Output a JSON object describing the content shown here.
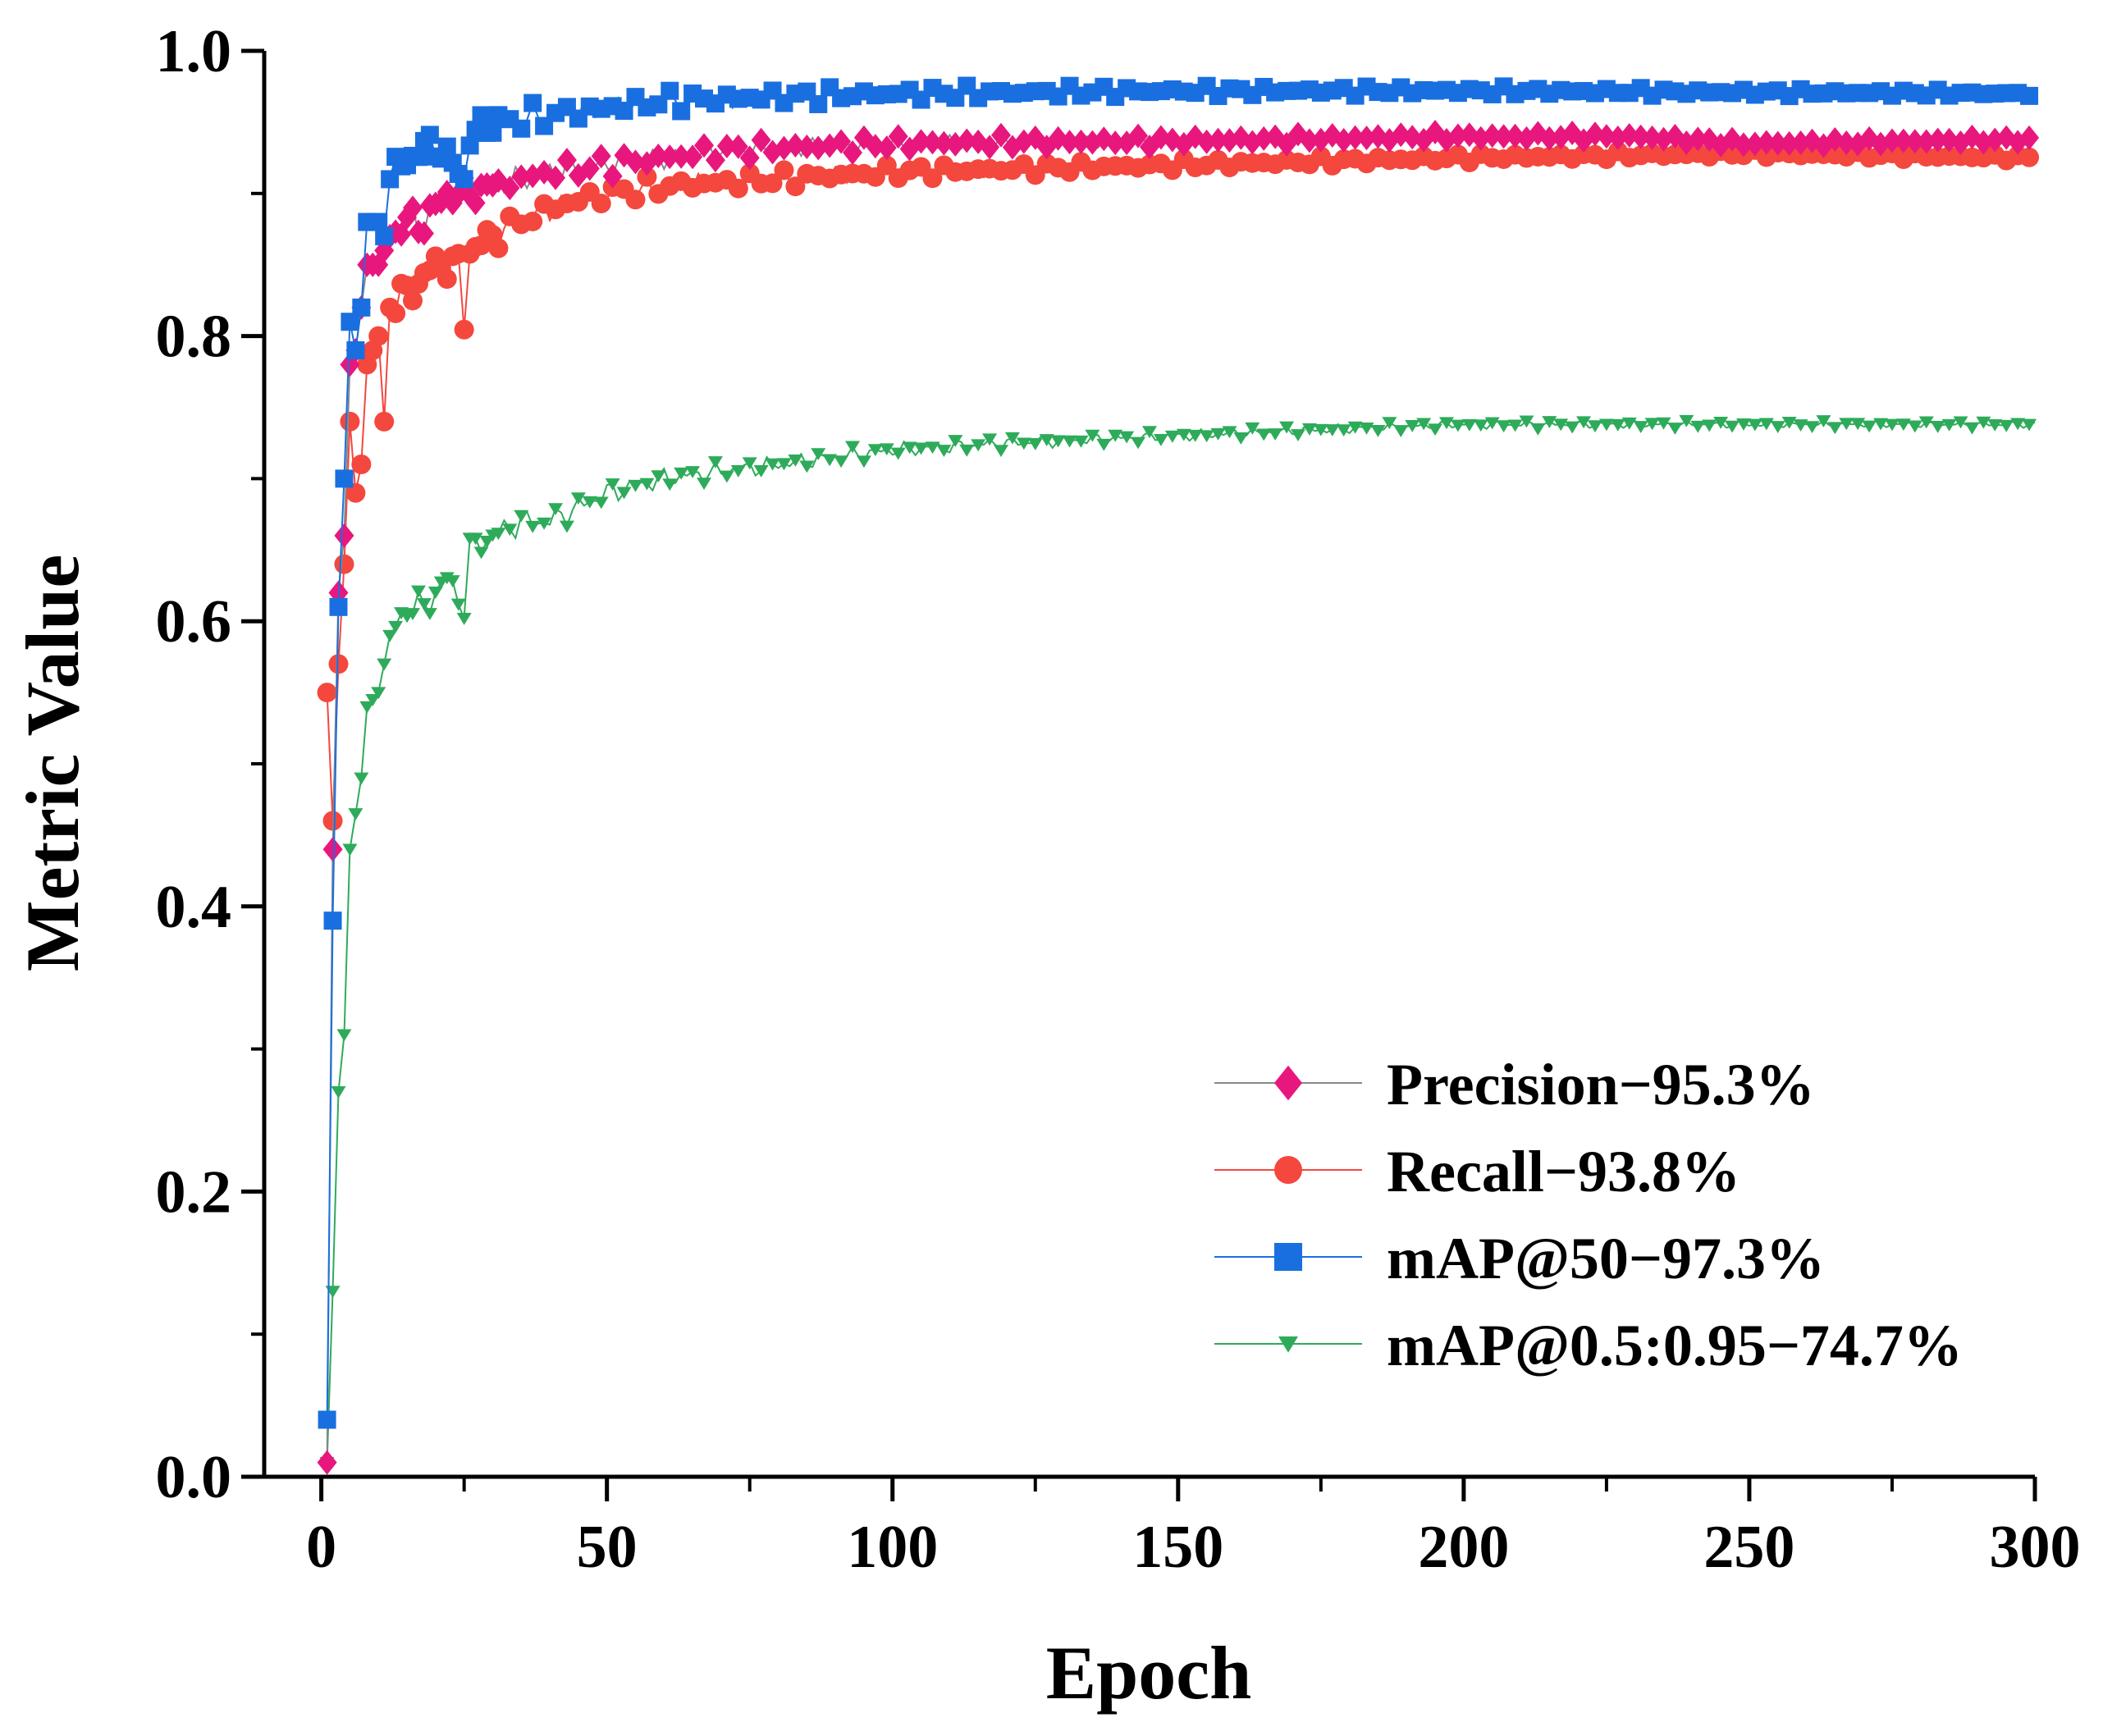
{
  "chart_data": {
    "type": "line",
    "title": "",
    "xlabel": "Epoch",
    "ylabel": "Metric Value",
    "xlim": [
      -10,
      300
    ],
    "ylim": [
      0.0,
      1.0
    ],
    "x_ticks": [
      0,
      50,
      100,
      150,
      200,
      250,
      300
    ],
    "x_tick_labels": [
      "0",
      "50",
      "100",
      "150",
      "200",
      "250",
      "300"
    ],
    "y_ticks": [
      0.0,
      0.2,
      0.4,
      0.6,
      0.8,
      1.0
    ],
    "y_tick_labels": [
      "0.0",
      "0.2",
      "0.4",
      "0.6",
      "0.8",
      "1.0"
    ],
    "grid": false,
    "legend_position": "bottom-right",
    "series": [
      {
        "name": "Precision",
        "legend_label": "Precision−95.3%",
        "color": "#e8177e",
        "line_color": "#888888",
        "marker": "diamond",
        "anchors": [
          [
            1,
            0.01
          ],
          [
            2,
            0.44
          ],
          [
            3,
            0.62
          ],
          [
            4,
            0.66
          ],
          [
            5,
            0.78
          ],
          [
            6,
            0.79
          ],
          [
            7,
            0.82
          ],
          [
            8,
            0.85
          ],
          [
            10,
            0.85
          ],
          [
            12,
            0.87
          ],
          [
            15,
            0.88
          ],
          [
            18,
            0.88
          ],
          [
            22,
            0.9
          ],
          [
            25,
            0.9
          ],
          [
            30,
            0.905
          ],
          [
            40,
            0.915
          ],
          [
            50,
            0.92
          ],
          [
            60,
            0.925
          ],
          [
            70,
            0.93
          ],
          [
            80,
            0.932
          ],
          [
            100,
            0.935
          ],
          [
            120,
            0.936
          ],
          [
            150,
            0.937
          ],
          [
            200,
            0.94
          ],
          [
            230,
            0.94
          ],
          [
            250,
            0.935
          ],
          [
            300,
            0.938
          ]
        ]
      },
      {
        "name": "Recall",
        "legend_label": "Recall−93.8%",
        "color": "#f4473e",
        "line_color": "#f4473e",
        "marker": "circle",
        "anchors": [
          [
            1,
            0.55
          ],
          [
            2,
            0.46
          ],
          [
            3,
            0.57
          ],
          [
            4,
            0.64
          ],
          [
            5,
            0.74
          ],
          [
            6,
            0.69
          ],
          [
            7,
            0.71
          ],
          [
            8,
            0.78
          ],
          [
            9,
            0.79
          ],
          [
            10,
            0.8
          ],
          [
            11,
            0.74
          ],
          [
            12,
            0.82
          ],
          [
            15,
            0.83
          ],
          [
            20,
            0.85
          ],
          [
            24,
            0.85
          ],
          [
            25,
            0.81
          ],
          [
            26,
            0.86
          ],
          [
            30,
            0.87
          ],
          [
            40,
            0.89
          ],
          [
            50,
            0.9
          ],
          [
            60,
            0.905
          ],
          [
            80,
            0.91
          ],
          [
            100,
            0.915
          ],
          [
            150,
            0.92
          ],
          [
            200,
            0.925
          ],
          [
            250,
            0.928
          ],
          [
            300,
            0.925
          ]
        ]
      },
      {
        "name": "mAP@50",
        "legend_label": "mAP@50−97.3%",
        "color": "#1a6fe0",
        "line_color": "#1a6fe0",
        "marker": "square",
        "anchors": [
          [
            1,
            0.04
          ],
          [
            2,
            0.39
          ],
          [
            3,
            0.61
          ],
          [
            4,
            0.7
          ],
          [
            5,
            0.81
          ],
          [
            6,
            0.79
          ],
          [
            7,
            0.82
          ],
          [
            8,
            0.88
          ],
          [
            10,
            0.88
          ],
          [
            11,
            0.87
          ],
          [
            12,
            0.91
          ],
          [
            14,
            0.92
          ],
          [
            17,
            0.93
          ],
          [
            20,
            0.935
          ],
          [
            25,
            0.91
          ],
          [
            26,
            0.94
          ],
          [
            30,
            0.95
          ],
          [
            40,
            0.955
          ],
          [
            50,
            0.96
          ],
          [
            60,
            0.965
          ],
          [
            80,
            0.968
          ],
          [
            100,
            0.97
          ],
          [
            150,
            0.972
          ],
          [
            200,
            0.972
          ],
          [
            250,
            0.971
          ],
          [
            300,
            0.97
          ]
        ]
      },
      {
        "name": "mAP@0.5:0.95",
        "legend_label": "mAP@0.5:0.95−74.7%",
        "color": "#2eab5a",
        "line_color": "#2eab5a",
        "marker": "triangle-down",
        "anchors": [
          [
            1,
            0.01
          ],
          [
            2,
            0.13
          ],
          [
            3,
            0.27
          ],
          [
            4,
            0.31
          ],
          [
            5,
            0.44
          ],
          [
            7,
            0.49
          ],
          [
            8,
            0.54
          ],
          [
            10,
            0.55
          ],
          [
            12,
            0.59
          ],
          [
            15,
            0.61
          ],
          [
            18,
            0.61
          ],
          [
            20,
            0.62
          ],
          [
            22,
            0.63
          ],
          [
            25,
            0.61
          ],
          [
            26,
            0.65
          ],
          [
            30,
            0.66
          ],
          [
            35,
            0.67
          ],
          [
            40,
            0.67
          ],
          [
            45,
            0.68
          ],
          [
            50,
            0.69
          ],
          [
            60,
            0.7
          ],
          [
            70,
            0.705
          ],
          [
            80,
            0.71
          ],
          [
            100,
            0.72
          ],
          [
            120,
            0.725
          ],
          [
            150,
            0.73
          ],
          [
            180,
            0.735
          ],
          [
            200,
            0.738
          ],
          [
            250,
            0.738
          ],
          [
            300,
            0.738
          ]
        ]
      }
    ]
  }
}
